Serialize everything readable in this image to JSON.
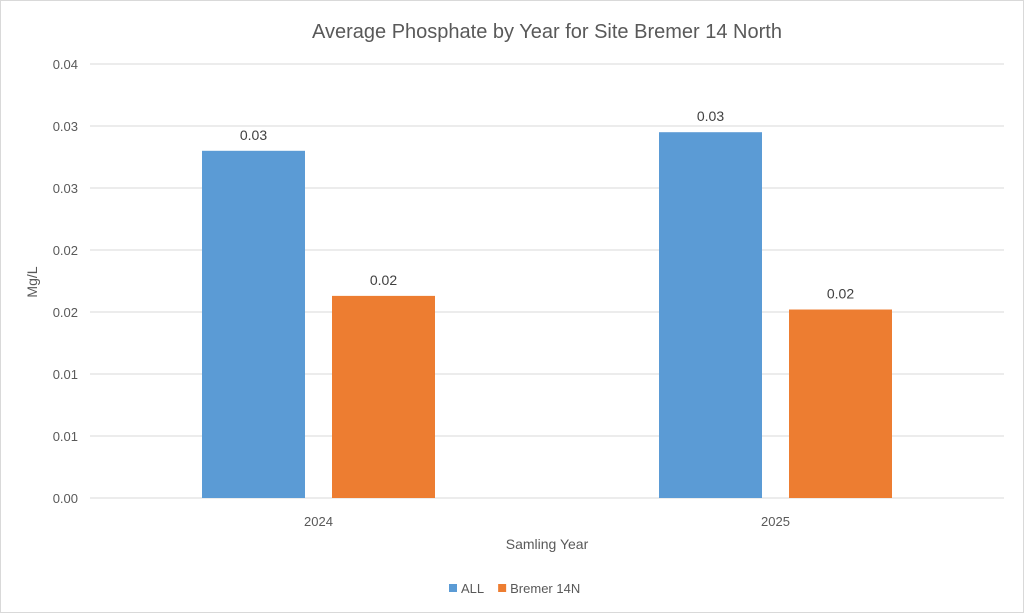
{
  "chart_data": {
    "type": "bar",
    "title": "Average Phosphate by Year for Site Bremer 14 North",
    "xlabel": "Samling Year",
    "ylabel": "Mg/L",
    "categories": [
      "2024",
      "2025"
    ],
    "series": [
      {
        "name": "ALL",
        "color": "#5b9bd5",
        "values": [
          0.028,
          0.0295
        ],
        "labels": [
          "0.03",
          "0.03"
        ]
      },
      {
        "name": "Bremer 14N",
        "color": "#ed7d31",
        "values": [
          0.0163,
          0.0152
        ],
        "labels": [
          "0.02",
          "0.02"
        ]
      }
    ],
    "ylim": [
      0,
      0.035
    ],
    "yticks": [
      0,
      0.005,
      0.01,
      0.015,
      0.02,
      0.025,
      0.03,
      0.035
    ],
    "ytick_labels": [
      "0.00",
      "0.01",
      "0.01",
      "0.02",
      "0.02",
      "0.03",
      "0.03",
      "0.04"
    ],
    "grid": true,
    "legend_position": "bottom"
  }
}
